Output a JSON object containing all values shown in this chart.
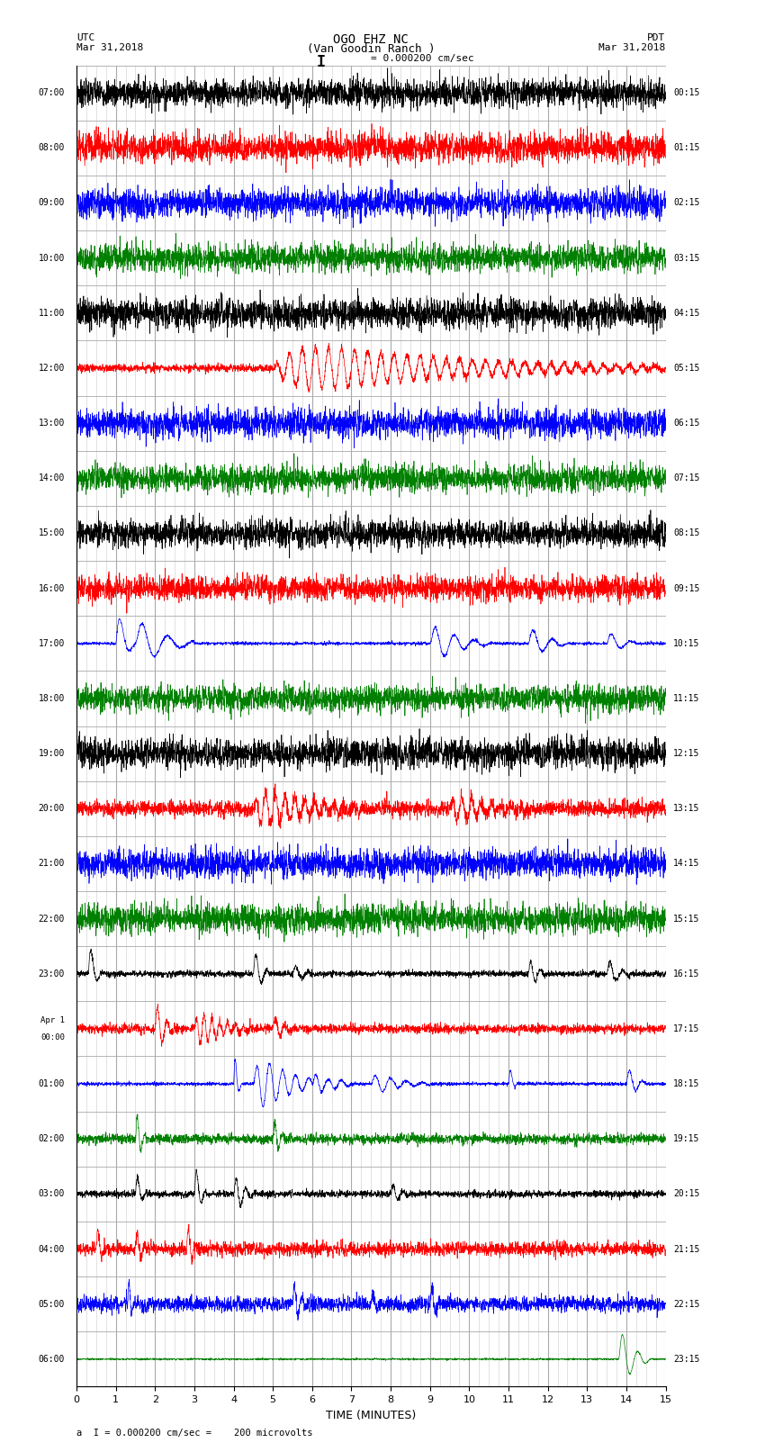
{
  "title_line1": "OGO EHZ NC",
  "title_line2": "(Van Goodin Ranch )",
  "title_line3": "I = 0.000200 cm/sec",
  "utc_label": "UTC",
  "utc_date": "Mar 31,2018",
  "pdt_label": "PDT",
  "pdt_date": "Mar 31,2018",
  "left_times": [
    "07:00",
    "08:00",
    "09:00",
    "10:00",
    "11:00",
    "12:00",
    "13:00",
    "14:00",
    "15:00",
    "16:00",
    "17:00",
    "18:00",
    "19:00",
    "20:00",
    "21:00",
    "22:00",
    "23:00",
    "Apr 1\n00:00",
    "01:00",
    "02:00",
    "03:00",
    "04:00",
    "05:00",
    "06:00"
  ],
  "right_times": [
    "00:15",
    "01:15",
    "02:15",
    "03:15",
    "04:15",
    "05:15",
    "06:15",
    "07:15",
    "08:15",
    "09:15",
    "10:15",
    "11:15",
    "12:15",
    "13:15",
    "14:15",
    "15:15",
    "16:15",
    "17:15",
    "18:15",
    "19:15",
    "20:15",
    "21:15",
    "22:15",
    "23:15"
  ],
  "xlabel": "TIME (MINUTES)",
  "footer": "a  I = 0.000200 cm/sec =    200 microvolts",
  "n_rows": 24,
  "n_minutes": 15,
  "background_color": "#ffffff",
  "grid_major_color": "#aaaaaa",
  "grid_minor_color": "#cccccc",
  "row_colors": [
    "black",
    "red",
    "blue",
    "green",
    "black",
    "red",
    "blue",
    "green",
    "black",
    "red",
    "blue",
    "green",
    "black",
    "red",
    "blue",
    "green",
    "black",
    "red",
    "blue",
    "green",
    "black",
    "red",
    "blue",
    "green"
  ],
  "noise_amp": 0.015,
  "spike_amp": 0.35,
  "sample_rate": 200
}
